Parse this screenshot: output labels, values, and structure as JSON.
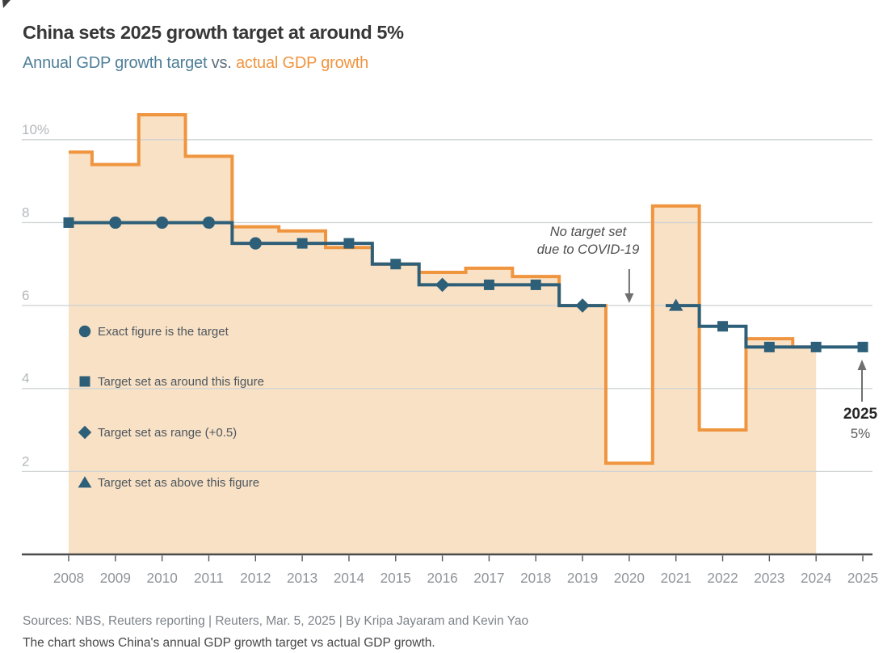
{
  "header": {
    "title": "China sets 2025 growth target at around 5%",
    "subtitle": {
      "target_part": "Annual GDP growth target",
      "vs_part": " vs. ",
      "actual_part": "actual GDP growth"
    }
  },
  "colors": {
    "target_line": "#2e5f78",
    "actual_line": "#f0953f",
    "actual_fill": "#f8e1c5",
    "gridline": "#cfd2d3",
    "axis_line": "#4b4b4b",
    "y_label": "#b4b7ba",
    "x_label": "#8e959b",
    "arrow": "#6f6f6f"
  },
  "chart_data": {
    "type": "line",
    "step": true,
    "title": "China sets 2025 growth target at around 5%",
    "xlabel": "",
    "ylabel": "",
    "grid": true,
    "legend_position": "inside-left",
    "x": [
      2008,
      2009,
      2010,
      2011,
      2012,
      2013,
      2014,
      2015,
      2016,
      2017,
      2018,
      2019,
      2020,
      2021,
      2022,
      2023,
      2024,
      2025
    ],
    "ylim": [
      0,
      10.85
    ],
    "yticks": [
      {
        "v": 2,
        "label": "2"
      },
      {
        "v": 4,
        "label": "4"
      },
      {
        "v": 6,
        "label": "6"
      },
      {
        "v": 8,
        "label": "8"
      },
      {
        "v": 10,
        "label": "10%"
      }
    ],
    "series": [
      {
        "name": "actual GDP growth",
        "kind": "step-area",
        "values": [
          9.7,
          9.4,
          10.6,
          9.6,
          7.9,
          7.8,
          7.4,
          7.0,
          6.8,
          6.9,
          6.7,
          6.0,
          2.2,
          8.4,
          3.0,
          5.2,
          5.0,
          null
        ]
      },
      {
        "name": "Annual GDP growth target",
        "kind": "step-line",
        "values": [
          8,
          8,
          8,
          8,
          7.5,
          7.5,
          7.5,
          7.0,
          6.5,
          6.5,
          6.5,
          6.0,
          null,
          6.0,
          5.5,
          5.0,
          5.0,
          5.0
        ],
        "markers": [
          "square",
          "circle",
          "circle",
          "circle",
          "circle",
          "square",
          "square",
          "square",
          "diamond",
          "square",
          "square",
          "diamond",
          null,
          "triangle",
          "square",
          "square",
          "square",
          "square"
        ]
      }
    ],
    "legend": [
      {
        "marker": "circle",
        "label": "Exact figure is the target"
      },
      {
        "marker": "square",
        "label": "Target set as around this figure"
      },
      {
        "marker": "diamond",
        "label": "Target set as range (+0.5)"
      },
      {
        "marker": "triangle",
        "label": "Target set as above this figure"
      }
    ],
    "annotations": {
      "covid": {
        "line1": "No target set",
        "line2": "due to COVID-19",
        "year": 2020,
        "arrow": "down"
      },
      "latest": {
        "line1": "2025",
        "line2": "5%",
        "year": 2025,
        "arrow": "up"
      }
    }
  },
  "footer": {
    "sources": "Sources: NBS, Reuters reporting | Reuters, Mar. 5, 2025 | By Kripa Jayaram and Kevin Yao",
    "note": "The chart shows China's annual GDP growth target vs actual GDP growth."
  }
}
